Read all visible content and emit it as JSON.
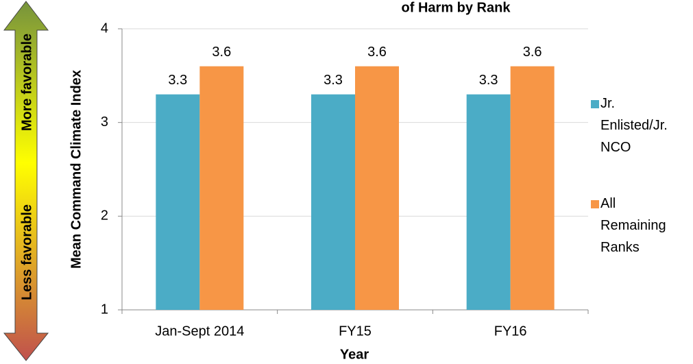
{
  "chart_data": {
    "type": "bar",
    "title": "of Harm by Rank",
    "y_label": "Mean Command Climate Index",
    "x_label": "Year",
    "annotations": [
      "More favorable",
      "Less favorable"
    ],
    "categories": [
      "Jan-Sept 2014",
      "FY15",
      "FY16"
    ],
    "series": [
      {
        "name": "Jr. Enlisted/Jr. NCO",
        "color": "#4bacc6",
        "values": [
          3.3,
          3.3,
          3.3
        ]
      },
      {
        "name": "All Remaining Ranks",
        "color": "#f79646",
        "values": [
          3.6,
          3.6,
          3.6
        ]
      }
    ],
    "ylim": [
      1,
      4
    ],
    "yticks": [
      1,
      2,
      3,
      4
    ],
    "grid": true,
    "legend": "right"
  }
}
